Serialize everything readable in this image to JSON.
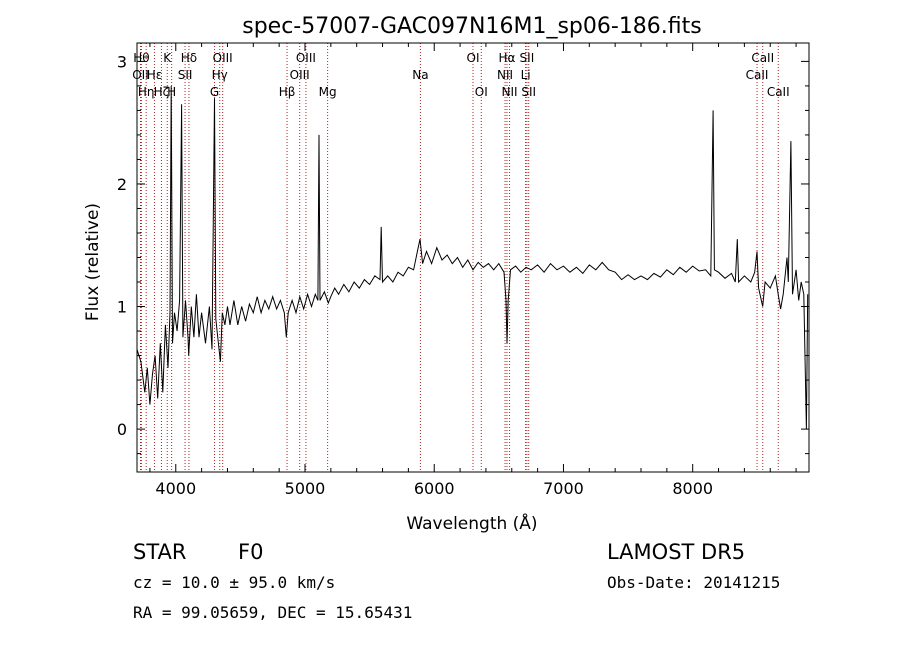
{
  "chart_data": {
    "type": "line",
    "title": "spec-57007-GAC097N16M1_sp06-186.fits",
    "xlabel": "Wavelength (Å)",
    "ylabel": "Flux (relative)",
    "xlim": [
      3700,
      8900
    ],
    "ylim": [
      -0.35,
      3.15
    ],
    "xticks": [
      4000,
      5000,
      6000,
      7000,
      8000
    ],
    "yticks": [
      0,
      1,
      2,
      3
    ],
    "grid": false,
    "series": [
      {
        "points": [
          [
            3700,
            0.65
          ],
          [
            3730,
            0.55
          ],
          [
            3760,
            0.3
          ],
          [
            3780,
            0.5
          ],
          [
            3800,
            0.2
          ],
          [
            3820,
            0.45
          ],
          [
            3840,
            0.6
          ],
          [
            3860,
            0.25
          ],
          [
            3880,
            0.7
          ],
          [
            3900,
            0.3
          ],
          [
            3920,
            0.85
          ],
          [
            3940,
            0.5
          ],
          [
            3955,
            0.95
          ],
          [
            3965,
            2.8
          ],
          [
            3975,
            0.7
          ],
          [
            3990,
            0.95
          ],
          [
            4010,
            0.8
          ],
          [
            4030,
            1.05
          ],
          [
            4045,
            2.65
          ],
          [
            4055,
            0.75
          ],
          [
            4075,
            1.05
          ],
          [
            4095,
            0.75
          ],
          [
            4100,
            0.6
          ],
          [
            4120,
            1.0
          ],
          [
            4140,
            0.75
          ],
          [
            4160,
            1.1
          ],
          [
            4180,
            0.75
          ],
          [
            4200,
            0.95
          ],
          [
            4230,
            0.7
          ],
          [
            4260,
            1.0
          ],
          [
            4280,
            0.65
          ],
          [
            4300,
            2.7
          ],
          [
            4310,
            0.9
          ],
          [
            4330,
            0.7
          ],
          [
            4345,
            0.55
          ],
          [
            4360,
            0.95
          ],
          [
            4380,
            0.85
          ],
          [
            4400,
            1.0
          ],
          [
            4420,
            0.85
          ],
          [
            4450,
            1.05
          ],
          [
            4480,
            0.85
          ],
          [
            4510,
            1.0
          ],
          [
            4540,
            0.88
          ],
          [
            4570,
            1.02
          ],
          [
            4600,
            0.95
          ],
          [
            4630,
            1.08
          ],
          [
            4660,
            0.95
          ],
          [
            4690,
            1.05
          ],
          [
            4720,
            0.98
          ],
          [
            4750,
            1.08
          ],
          [
            4780,
            0.98
          ],
          [
            4810,
            1.05
          ],
          [
            4840,
            0.95
          ],
          [
            4855,
            0.75
          ],
          [
            4870,
            0.95
          ],
          [
            4900,
            1.05
          ],
          [
            4930,
            0.95
          ],
          [
            4960,
            1.08
          ],
          [
            4990,
            0.98
          ],
          [
            5020,
            1.1
          ],
          [
            5050,
            1.0
          ],
          [
            5080,
            1.1
          ],
          [
            5100,
            1.05
          ],
          [
            5108,
            2.4
          ],
          [
            5116,
            1.05
          ],
          [
            5150,
            1.12
          ],
          [
            5180,
            1.03
          ],
          [
            5200,
            1.08
          ],
          [
            5230,
            1.15
          ],
          [
            5260,
            1.1
          ],
          [
            5300,
            1.18
          ],
          [
            5340,
            1.12
          ],
          [
            5380,
            1.2
          ],
          [
            5420,
            1.15
          ],
          [
            5460,
            1.22
          ],
          [
            5500,
            1.18
          ],
          [
            5540,
            1.25
          ],
          [
            5580,
            1.22
          ],
          [
            5590,
            1.65
          ],
          [
            5600,
            1.2
          ],
          [
            5640,
            1.25
          ],
          [
            5680,
            1.2
          ],
          [
            5720,
            1.28
          ],
          [
            5760,
            1.25
          ],
          [
            5800,
            1.32
          ],
          [
            5840,
            1.3
          ],
          [
            5870,
            1.45
          ],
          [
            5890,
            1.55
          ],
          [
            5910,
            1.35
          ],
          [
            5940,
            1.45
          ],
          [
            5980,
            1.35
          ],
          [
            6020,
            1.48
          ],
          [
            6060,
            1.38
          ],
          [
            6100,
            1.42
          ],
          [
            6140,
            1.35
          ],
          [
            6180,
            1.4
          ],
          [
            6220,
            1.32
          ],
          [
            6260,
            1.38
          ],
          [
            6300,
            1.3
          ],
          [
            6340,
            1.36
          ],
          [
            6380,
            1.32
          ],
          [
            6420,
            1.35
          ],
          [
            6460,
            1.3
          ],
          [
            6500,
            1.35
          ],
          [
            6540,
            1.28
          ],
          [
            6555,
            1.05
          ],
          [
            6563,
            0.7
          ],
          [
            6572,
            1.05
          ],
          [
            6590,
            1.3
          ],
          [
            6630,
            1.33
          ],
          [
            6670,
            1.28
          ],
          [
            6710,
            1.32
          ],
          [
            6750,
            1.3
          ],
          [
            6800,
            1.34
          ],
          [
            6850,
            1.28
          ],
          [
            6900,
            1.35
          ],
          [
            6950,
            1.3
          ],
          [
            7000,
            1.33
          ],
          [
            7050,
            1.28
          ],
          [
            7100,
            1.32
          ],
          [
            7150,
            1.27
          ],
          [
            7200,
            1.34
          ],
          [
            7250,
            1.3
          ],
          [
            7300,
            1.36
          ],
          [
            7350,
            1.3
          ],
          [
            7400,
            1.28
          ],
          [
            7450,
            1.22
          ],
          [
            7500,
            1.26
          ],
          [
            7550,
            1.22
          ],
          [
            7600,
            1.25
          ],
          [
            7650,
            1.22
          ],
          [
            7700,
            1.27
          ],
          [
            7750,
            1.24
          ],
          [
            7800,
            1.3
          ],
          [
            7850,
            1.26
          ],
          [
            7900,
            1.32
          ],
          [
            7950,
            1.28
          ],
          [
            8000,
            1.33
          ],
          [
            8050,
            1.29
          ],
          [
            8100,
            1.3
          ],
          [
            8140,
            1.25
          ],
          [
            8158,
            2.6
          ],
          [
            8168,
            1.3
          ],
          [
            8200,
            1.28
          ],
          [
            8250,
            1.23
          ],
          [
            8300,
            1.27
          ],
          [
            8330,
            1.2
          ],
          [
            8345,
            1.55
          ],
          [
            8355,
            1.2
          ],
          [
            8400,
            1.25
          ],
          [
            8450,
            1.2
          ],
          [
            8480,
            1.28
          ],
          [
            8498,
            1.45
          ],
          [
            8510,
            1.15
          ],
          [
            8542,
            1.0
          ],
          [
            8560,
            1.2
          ],
          [
            8600,
            1.15
          ],
          [
            8640,
            1.25
          ],
          [
            8662,
            1.1
          ],
          [
            8680,
            0.98
          ],
          [
            8700,
            1.1
          ],
          [
            8730,
            1.4
          ],
          [
            8740,
            1.2
          ],
          [
            8760,
            2.35
          ],
          [
            8772,
            1.1
          ],
          [
            8800,
            1.3
          ],
          [
            8820,
            1.05
          ],
          [
            8840,
            1.2
          ],
          [
            8860,
            1.1
          ],
          [
            8880,
            0.0
          ],
          [
            8890,
            1.1
          ]
        ]
      }
    ],
    "lines": [
      {
        "wave": 3734,
        "label": "Hθ",
        "row": 0
      },
      {
        "wave": 3727,
        "label": "OII",
        "row": 1
      },
      {
        "wave": 3771,
        "label": "Hη",
        "row": 2
      },
      {
        "wave": 3835,
        "label": "Hε",
        "row": 1
      },
      {
        "wave": 3889,
        "label": "Hζ",
        "row": 2
      },
      {
        "wave": 3934,
        "label": "K",
        "row": 0
      },
      {
        "wave": 3968,
        "label": "H",
        "row": 2
      },
      {
        "wave": 4072,
        "label": "SII",
        "row": 1
      },
      {
        "wave": 4102,
        "label": "Hδ",
        "row": 0
      },
      {
        "wave": 4300,
        "label": "G",
        "row": 2
      },
      {
        "wave": 4340,
        "label": "Hγ",
        "row": 1
      },
      {
        "wave": 4363,
        "label": "OIII",
        "row": 0
      },
      {
        "wave": 4861,
        "label": "Hβ",
        "row": 2
      },
      {
        "wave": 4959,
        "label": "OIII",
        "row": 1
      },
      {
        "wave": 5007,
        "label": "OIII",
        "row": 0
      },
      {
        "wave": 5175,
        "label": "Mg",
        "row": 2
      },
      {
        "wave": 5893,
        "label": "Na",
        "row": 1
      },
      {
        "wave": 6300,
        "label": "OI",
        "row": 0
      },
      {
        "wave": 6364,
        "label": "OI",
        "row": 2
      },
      {
        "wave": 6548,
        "label": "NII",
        "row": 1
      },
      {
        "wave": 6563,
        "label": "Hα",
        "row": 0
      },
      {
        "wave": 6583,
        "label": "NII",
        "row": 2
      },
      {
        "wave": 6707,
        "label": "Li",
        "row": 1
      },
      {
        "wave": 6717,
        "label": "SII",
        "row": 0
      },
      {
        "wave": 6731,
        "label": "SII",
        "row": 2
      },
      {
        "wave": 8498,
        "label": "CaII",
        "row": 1
      },
      {
        "wave": 8542,
        "label": "CaII",
        "row": 0
      },
      {
        "wave": 8662,
        "label": "CaII",
        "row": 2
      }
    ]
  },
  "footer": {
    "class": "STAR",
    "subclass": "F0",
    "survey": "LAMOST DR5",
    "cz": "cz = 10.0 ± 95.0 km/s",
    "obs_date": "Obs-Date: 20141215",
    "coords": "RA =  99.05659, DEC =  15.65431"
  },
  "colors": {
    "spectrum": "#000000",
    "line_markers": "#b22222",
    "axes": "#000000"
  }
}
